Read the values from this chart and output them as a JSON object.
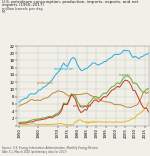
{
  "title_line1": "U.S. petroleum consumption, production, imports, exports, and net",
  "title_line2": "imports (1950–2017)",
  "ylabel": "million barrels per day",
  "ylabel_short": "M",
  "background_color": "#f0efe8",
  "plot_bg": "#f0efe8",
  "years": [
    1950,
    1951,
    1952,
    1953,
    1954,
    1955,
    1956,
    1957,
    1958,
    1959,
    1960,
    1961,
    1962,
    1963,
    1964,
    1965,
    1966,
    1967,
    1968,
    1969,
    1970,
    1971,
    1972,
    1973,
    1974,
    1975,
    1976,
    1977,
    1978,
    1979,
    1980,
    1981,
    1982,
    1983,
    1984,
    1985,
    1986,
    1987,
    1988,
    1989,
    1990,
    1991,
    1992,
    1993,
    1994,
    1995,
    1996,
    1997,
    1998,
    1999,
    2000,
    2001,
    2002,
    2003,
    2004,
    2005,
    2006,
    2007,
    2008,
    2009,
    2010,
    2011,
    2012,
    2013,
    2014,
    2015,
    2016,
    2017
  ],
  "consumption": [
    6.46,
    7.05,
    7.25,
    7.56,
    7.55,
    8.46,
    8.83,
    8.74,
    8.72,
    9.05,
    9.8,
    9.85,
    10.4,
    10.73,
    11.02,
    11.51,
    12.07,
    12.56,
    13.39,
    14.14,
    14.7,
    15.21,
    16.37,
    17.31,
    16.65,
    16.32,
    17.46,
    18.43,
    18.85,
    18.51,
    17.06,
    16.06,
    15.3,
    15.23,
    15.73,
    15.73,
    16.28,
    16.67,
    17.28,
    17.33,
    16.99,
    16.71,
    17.03,
    17.24,
    17.72,
    17.72,
    18.31,
    18.62,
    18.92,
    19.52,
    19.7,
    19.65,
    19.76,
    20.03,
    20.73,
    20.8,
    20.69,
    20.68,
    19.5,
    18.77,
    19.18,
    18.88,
    18.49,
    18.96,
    19.11,
    19.53,
    19.69,
    19.96
  ],
  "production": [
    5.41,
    5.73,
    5.9,
    6.16,
    6.34,
    6.81,
    7.15,
    7.17,
    6.9,
    7.05,
    7.04,
    6.93,
    7.27,
    7.54,
    7.61,
    7.8,
    8.3,
    8.81,
    9.1,
    9.24,
    9.64,
    9.46,
    9.44,
    9.21,
    8.77,
    8.37,
    8.13,
    8.24,
    8.71,
    8.55,
    8.6,
    8.57,
    8.65,
    8.69,
    8.88,
    8.97,
    8.68,
    8.35,
    8.14,
    7.61,
    7.36,
    7.42,
    7.17,
    6.85,
    6.66,
    6.56,
    6.47,
    6.45,
    6.25,
    5.88,
    5.82,
    5.8,
    5.75,
    5.68,
    5.44,
    5.18,
    5.1,
    5.07,
    5.0,
    5.36,
    5.48,
    5.67,
    6.45,
    7.47,
    8.75,
    9.42,
    8.84,
    9.36
  ],
  "imports": [
    0.85,
    0.93,
    0.95,
    1.0,
    1.05,
    1.25,
    1.44,
    1.58,
    1.7,
    1.78,
    1.82,
    1.92,
    2.08,
    2.12,
    2.26,
    2.47,
    2.57,
    2.54,
    2.84,
    3.17,
    3.42,
    3.93,
    4.74,
    6.26,
    6.11,
    6.06,
    7.31,
    8.81,
    8.36,
    8.46,
    6.91,
    6.0,
    5.11,
    5.05,
    5.44,
    5.07,
    6.22,
    6.68,
    7.4,
    8.06,
    8.02,
    7.63,
    7.89,
    8.62,
    8.99,
    8.84,
    9.45,
    10.16,
    10.71,
    10.85,
    11.46,
    11.87,
    11.53,
    12.25,
    13.15,
    13.71,
    13.71,
    13.47,
    12.92,
    11.69,
    11.79,
    11.49,
    10.6,
    9.86,
    9.24,
    9.45,
    10.08,
    10.14
  ],
  "exports": [
    0.26,
    0.26,
    0.28,
    0.32,
    0.31,
    0.33,
    0.43,
    0.55,
    0.45,
    0.3,
    0.29,
    0.35,
    0.36,
    0.34,
    0.33,
    0.32,
    0.31,
    0.39,
    0.39,
    0.37,
    0.46,
    0.57,
    0.57,
    0.36,
    0.29,
    0.21,
    0.22,
    0.24,
    0.29,
    1.01,
    1.16,
    1.59,
    1.53,
    1.1,
    1.01,
    0.78,
    0.81,
    0.87,
    0.96,
    1.01,
    1.0,
    1.07,
    1.0,
    1.0,
    0.97,
    0.95,
    0.99,
    1.02,
    0.94,
    0.88,
    1.04,
    1.0,
    0.94,
    0.92,
    1.02,
    1.13,
    1.28,
    1.43,
    1.8,
    1.98,
    2.12,
    2.94,
    3.18,
    3.56,
    3.97,
    4.75,
    5.18,
    6.35
  ],
  "net_imports": [
    0.59,
    0.67,
    0.67,
    0.68,
    0.74,
    0.92,
    1.01,
    1.03,
    1.25,
    1.48,
    1.53,
    1.57,
    1.72,
    1.78,
    1.93,
    2.15,
    2.26,
    2.15,
    2.45,
    2.8,
    2.96,
    3.36,
    4.17,
    5.9,
    5.82,
    5.85,
    7.09,
    8.57,
    8.07,
    7.45,
    5.75,
    4.41,
    3.58,
    3.95,
    4.43,
    4.29,
    5.41,
    5.81,
    6.44,
    7.05,
    7.02,
    6.56,
    6.89,
    7.62,
    8.02,
    7.89,
    8.46,
    9.14,
    9.77,
    9.97,
    10.42,
    10.87,
    10.59,
    11.33,
    12.13,
    12.58,
    12.43,
    12.04,
    11.12,
    9.71,
    9.67,
    8.55,
    7.42,
    6.3,
    5.27,
    4.7,
    4.9,
    3.79
  ],
  "colors": {
    "consumption": "#29abe2",
    "production": "#c8873a",
    "imports": "#6aaa3a",
    "exports": "#e6b830",
    "net_imports": "#c0392b"
  },
  "xlim": [
    1949,
    2017
  ],
  "ylim": [
    0,
    22
  ],
  "yticks": [
    0,
    2,
    4,
    6,
    8,
    10,
    12,
    14,
    16,
    18,
    20,
    22
  ],
  "xticks": [
    1950,
    1960,
    1970,
    1975,
    1980,
    1985,
    1990,
    1995,
    2000,
    2005,
    2010,
    2015
  ],
  "source_text": "Source: U.S. Energy Information Administration, Monthly Energy Review;\nTable 3.1, March 2018 (preliminary data for 2017)"
}
